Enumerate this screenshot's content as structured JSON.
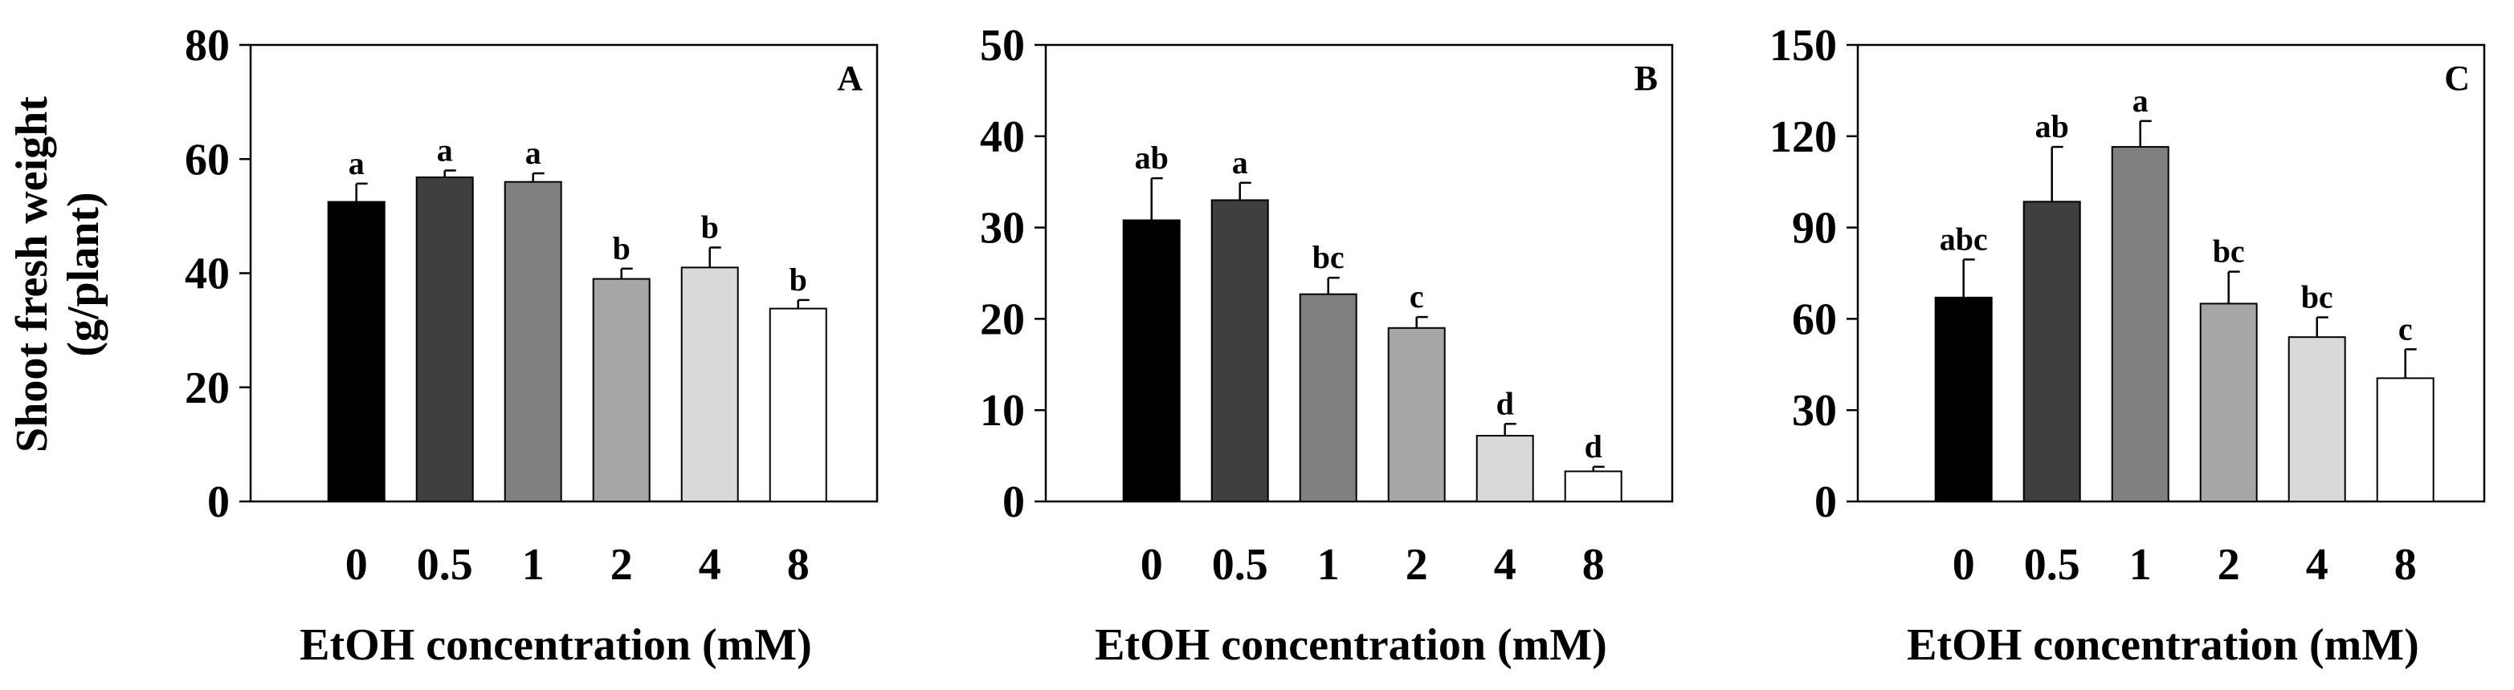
{
  "figure": {
    "ylabel_line1": "Shoot fresh weight",
    "ylabel_line2": "(g/plant)"
  },
  "chart_data": [
    {
      "type": "bar",
      "panel": "A",
      "categories": [
        "0",
        "0.5",
        "1",
        "2",
        "4",
        "8"
      ],
      "values": [
        52.5,
        56.8,
        56.0,
        39.0,
        41.0,
        33.8
      ],
      "errors": [
        3.2,
        1.2,
        1.5,
        1.8,
        3.5,
        1.5
      ],
      "significance": [
        "a",
        "a",
        "a",
        "b",
        "b",
        "b"
      ],
      "colors": [
        "#000000",
        "#3f3f3f",
        "#808080",
        "#a6a6a6",
        "#d9d9d9",
        "#ffffff"
      ],
      "xlabel": "EtOH concentration (mM)",
      "ylabel": "Shoot fresh weight (g/plant)",
      "ylim": [
        0,
        80
      ],
      "yticks": [
        0,
        20,
        40,
        60,
        80
      ]
    },
    {
      "type": "bar",
      "panel": "B",
      "categories": [
        "0",
        "0.5",
        "1",
        "2",
        "4",
        "8"
      ],
      "values": [
        30.8,
        33.0,
        22.7,
        19.0,
        7.2,
        3.3
      ],
      "errors": [
        4.6,
        1.9,
        1.8,
        1.2,
        1.3,
        0.5
      ],
      "significance": [
        "ab",
        "a",
        "bc",
        "c",
        "d",
        "d"
      ],
      "colors": [
        "#000000",
        "#3f3f3f",
        "#808080",
        "#a6a6a6",
        "#d9d9d9",
        "#ffffff"
      ],
      "xlabel": "EtOH concentration (mM)",
      "ylim": [
        0,
        50
      ],
      "yticks": [
        0,
        10,
        20,
        30,
        40,
        50
      ]
    },
    {
      "type": "bar",
      "panel": "C",
      "categories": [
        "0",
        "0.5",
        "1",
        "2",
        "4",
        "8"
      ],
      "values": [
        67,
        98.5,
        116.5,
        65,
        54,
        40.5
      ],
      "errors": [
        12.5,
        18,
        8.5,
        10.5,
        6.5,
        9.5
      ],
      "significance": [
        "abc",
        "ab",
        "a",
        "bc",
        "bc",
        "c"
      ],
      "colors": [
        "#000000",
        "#3f3f3f",
        "#808080",
        "#a6a6a6",
        "#d9d9d9",
        "#ffffff"
      ],
      "xlabel": "EtOH concentration (mM)",
      "ylim": [
        0,
        150
      ],
      "yticks": [
        0,
        30,
        60,
        90,
        120,
        150
      ]
    }
  ]
}
